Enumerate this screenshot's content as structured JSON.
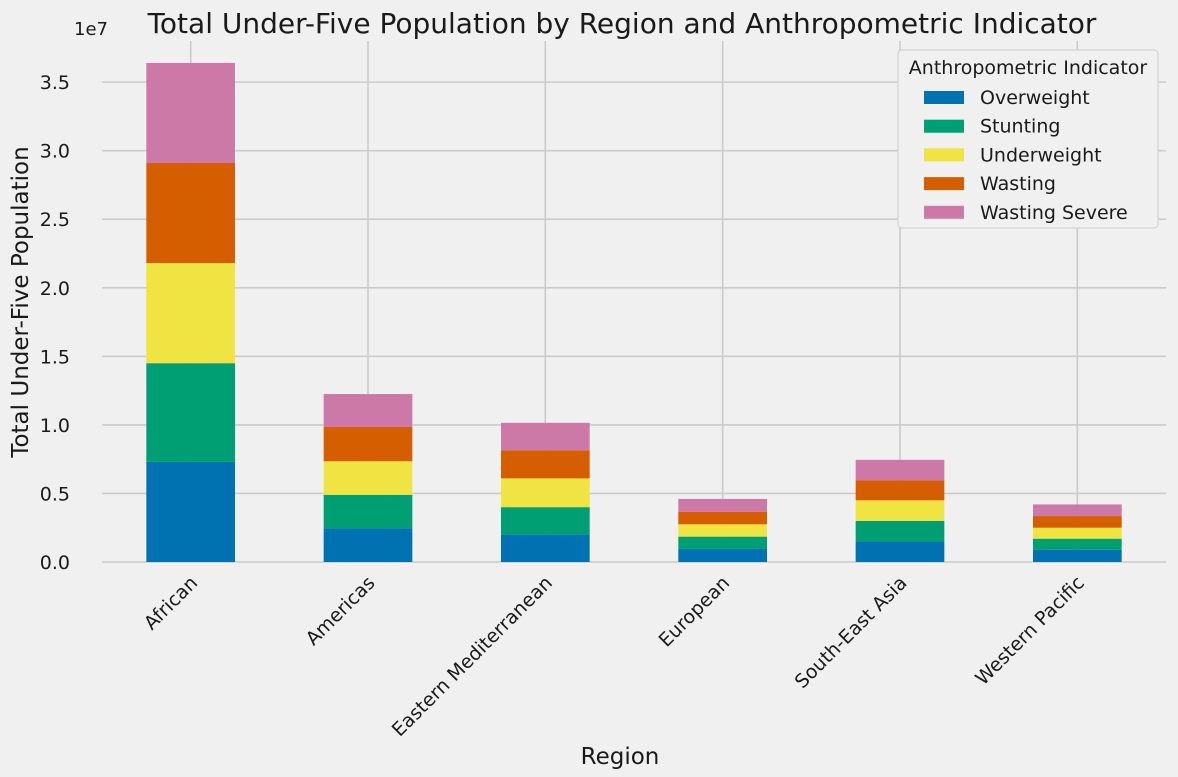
{
  "chart_data": {
    "type": "bar",
    "stacked": true,
    "title": "Total Under-Five Population by Region and Anthropometric Indicator",
    "xlabel": "Region",
    "ylabel": "Total Under-Five Population",
    "y_scale_label": "1e7",
    "ylim": [
      0,
      3.8
    ],
    "yticks": [
      0.0,
      0.5,
      1.0,
      1.5,
      2.0,
      2.5,
      3.0,
      3.5
    ],
    "ytick_labels": [
      "0.0",
      "0.5",
      "1.0",
      "1.5",
      "2.0",
      "2.5",
      "3.0",
      "3.5"
    ],
    "categories": [
      "African",
      "Americas",
      "Eastern Mediterranean",
      "European",
      "South-East Asia",
      "Western Pacific"
    ],
    "series": [
      {
        "name": "Overweight",
        "color": "#0072b2",
        "values": [
          0.73,
          0.245,
          0.2,
          0.095,
          0.15,
          0.09
        ]
      },
      {
        "name": "Stunting",
        "color": "#009e73",
        "values": [
          0.72,
          0.245,
          0.2,
          0.09,
          0.15,
          0.08
        ]
      },
      {
        "name": "Underweight",
        "color": "#f0e442",
        "values": [
          0.73,
          0.245,
          0.21,
          0.09,
          0.15,
          0.08
        ]
      },
      {
        "name": "Wasting",
        "color": "#d55e00",
        "values": [
          0.73,
          0.25,
          0.205,
          0.09,
          0.145,
          0.085
        ]
      },
      {
        "name": "Wasting Severe",
        "color": "#cc79a7",
        "values": [
          0.73,
          0.24,
          0.2,
          0.095,
          0.15,
          0.085
        ]
      }
    ],
    "legend": {
      "title": "Anthropometric Indicator",
      "placement": "top-right"
    },
    "grid": true
  }
}
